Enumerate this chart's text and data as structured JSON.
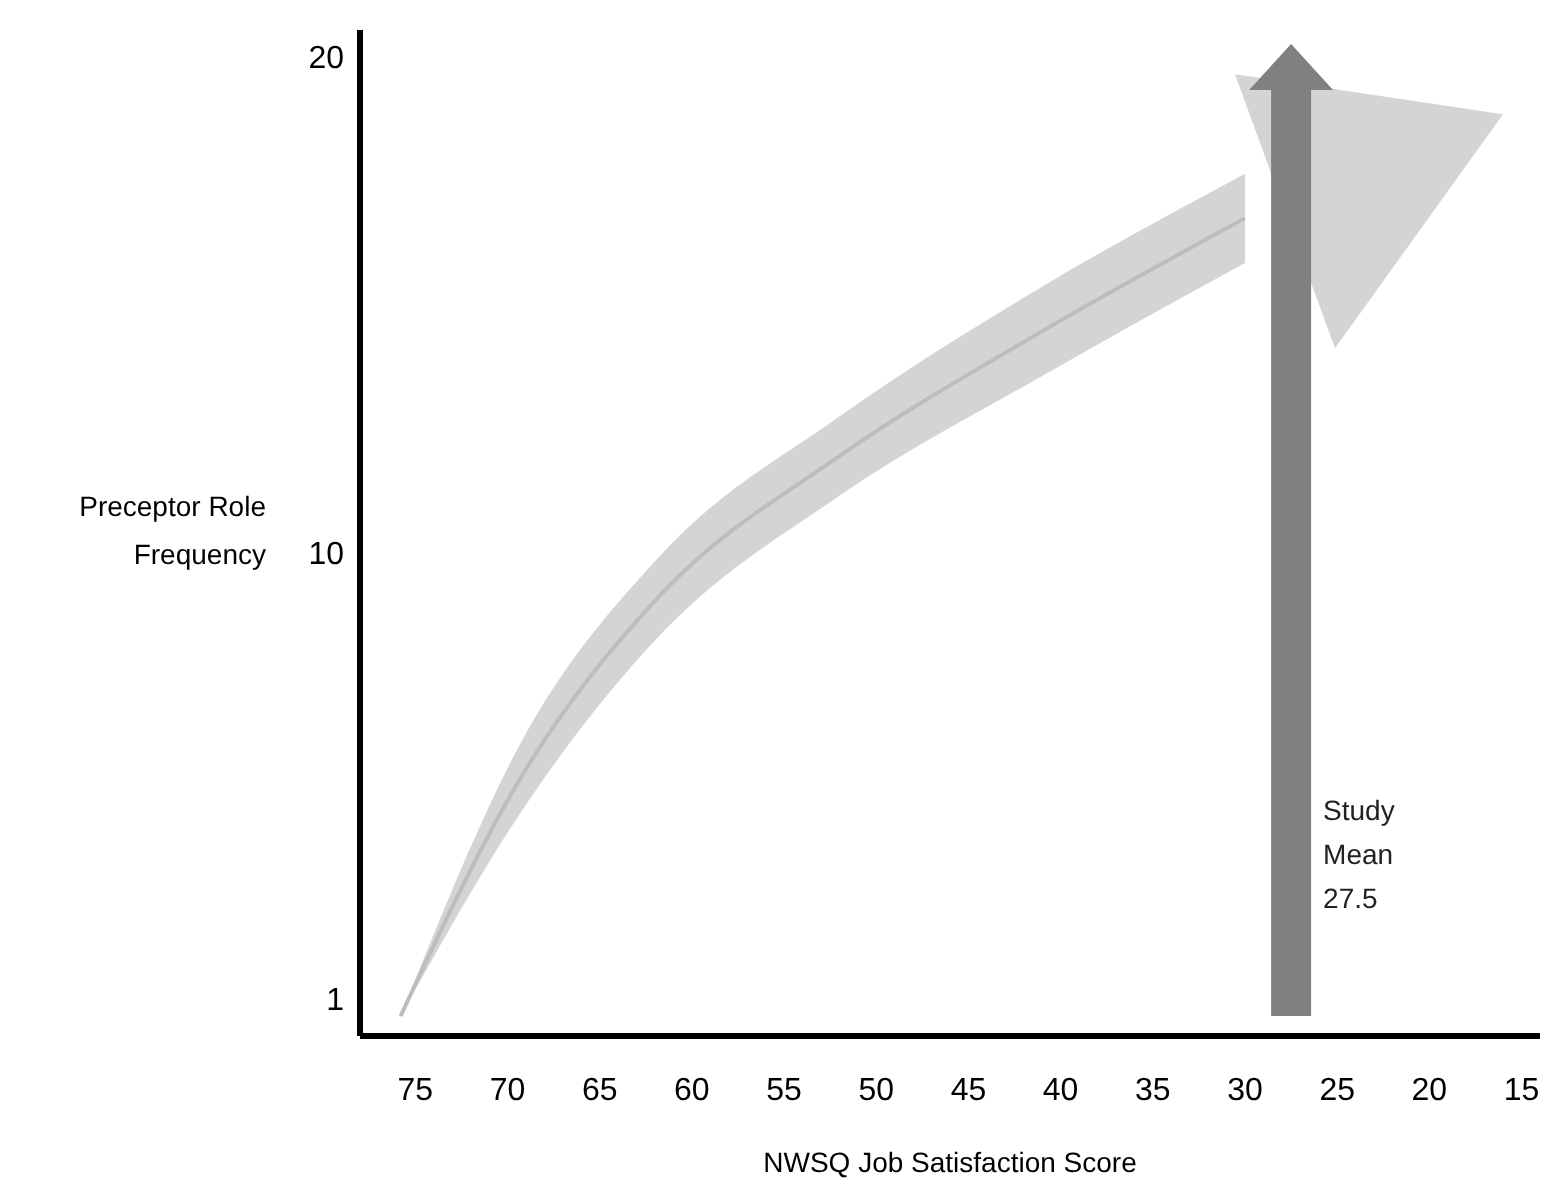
{
  "chart_data": {
    "type": "line",
    "xlabel": "NWSQ Job Satisfaction Score",
    "ylabel": "Preceptor Role Frequency",
    "xlim": [
      78,
      14
    ],
    "xticks": [
      75,
      70,
      65,
      60,
      55,
      50,
      45,
      40,
      35,
      30,
      25,
      20,
      15
    ],
    "ylim": [
      0.3,
      20.6
    ],
    "yticks": [
      1,
      10,
      20
    ],
    "series": [
      {
        "color": "#bdbdbd",
        "x": [
          75.8,
          69.3,
          61.7,
          52.0,
          41.1,
          30.0
        ],
        "values": [
          0.7,
          5.5,
          9.2,
          12.0,
          14.5,
          16.8
        ],
        "upper": [
          0.7,
          6.2,
          10.0,
          12.8,
          15.4,
          17.7
        ],
        "lower": [
          0.7,
          4.8,
          8.4,
          11.2,
          13.6,
          15.9
        ]
      }
    ],
    "ref_lines": [
      {
        "axis": "x",
        "value": 27.5,
        "label": "Study Mean 27.5",
        "color": "#808080"
      }
    ]
  }
}
